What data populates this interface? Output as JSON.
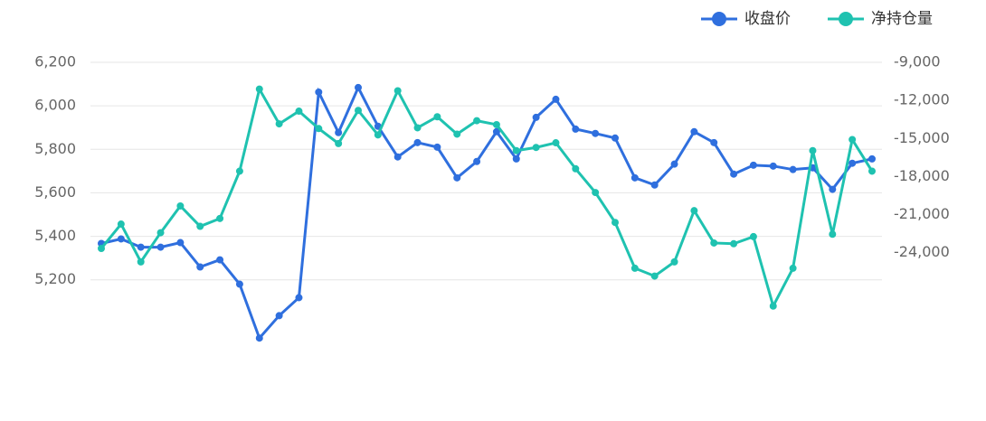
{
  "chart_data": {
    "type": "line",
    "categories": [
      null,
      null,
      null,
      null,
      null,
      null,
      null,
      null,
      null,
      null,
      null,
      null,
      null,
      null,
      null,
      null,
      null,
      null,
      null,
      null,
      null,
      null,
      null,
      null,
      null,
      null,
      null,
      null,
      null,
      null,
      null,
      null,
      null,
      null,
      null,
      null,
      null,
      null,
      null,
      null
    ],
    "series": [
      {
        "name": "收盘价",
        "color": "#2f6fde",
        "axis": "y",
        "values": [
          5367,
          5388,
          5350,
          5350,
          5371,
          5259,
          5292,
          5180,
          4932,
          5035,
          5118,
          6063,
          5877,
          6084,
          5906,
          5765,
          5831,
          5810,
          5669,
          5744,
          5881,
          5756,
          5947,
          6030,
          5893,
          5873,
          5852,
          5669,
          5636,
          5732,
          5881,
          5831,
          5686,
          5727,
          5723,
          5707,
          5715,
          5616,
          5736,
          5756
        ]
      },
      {
        "name": "净持仓量",
        "color": "#1fc2b0",
        "axis": "y2",
        "values": [
          -23670,
          -21750,
          -24730,
          -22430,
          -20320,
          -21930,
          -21310,
          -17580,
          -11110,
          -13850,
          -12850,
          -14220,
          -15400,
          -12790,
          -14720,
          -11240,
          -14160,
          -13290,
          -14660,
          -13600,
          -13910,
          -15960,
          -15710,
          -15340,
          -17390,
          -19260,
          -21620,
          -25230,
          -25850,
          -24730,
          -20690,
          -23240,
          -23300,
          -22740,
          -28210,
          -25230,
          -15960,
          -22550,
          -15090,
          -17580
        ]
      }
    ],
    "ylim": [
      4800,
      6200
    ],
    "yticks": [
      {
        "value": 6200,
        "label": "6,200"
      },
      {
        "value": 6000,
        "label": "6,000"
      },
      {
        "value": 5800,
        "label": "5,800"
      },
      {
        "value": 5600,
        "label": "5,600"
      },
      {
        "value": 5400,
        "label": "5,400"
      },
      {
        "value": 5200,
        "label": "5,200"
      }
    ],
    "y2lim": [
      -33000,
      -9000
    ],
    "y2ticks": [
      {
        "value": -9000,
        "label": "-9,000"
      },
      {
        "value": -12000,
        "label": "-12,000"
      },
      {
        "value": -15000,
        "label": "-15,000"
      },
      {
        "value": -18000,
        "label": "-18,000"
      },
      {
        "value": -21000,
        "label": "-21,000"
      },
      {
        "value": -24000,
        "label": "-24,000"
      }
    ],
    "grid": true,
    "legend": "top-right"
  }
}
